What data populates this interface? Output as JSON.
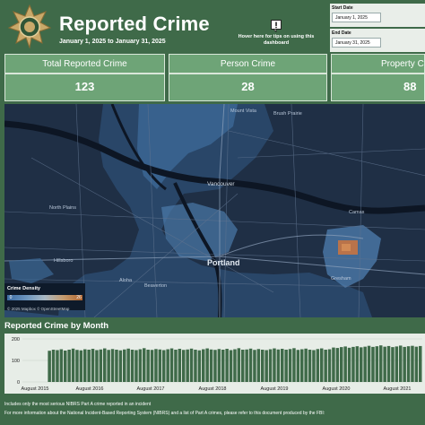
{
  "header": {
    "title": "Reported Crime",
    "date_range": "January 1, 2025 to January 31, 2025",
    "tips": "Hover here for tips on using this dashboard"
  },
  "filters": {
    "start_label": "Start Date",
    "start_value": "January 1, 2025",
    "end_label": "End Date",
    "end_value": "January 31, 2025"
  },
  "kpis": [
    {
      "label": "Total Reported Crime",
      "value": "123"
    },
    {
      "label": "Person Crime",
      "value": "28"
    },
    {
      "label": "Property Crime",
      "value": "88"
    }
  ],
  "map": {
    "cities": {
      "mount_vista": "Mount Vista",
      "brush_prairie": "Brush Prairie",
      "vancouver": "Vancouver",
      "north_plains": "North Plains",
      "camas": "Camas",
      "hillsboro": "Hillsboro",
      "portland": "Portland",
      "aloha": "Aloha",
      "beaverton": "Beaverton",
      "gresham": "Gresham"
    },
    "legend_title": "Crime Density",
    "legend_min": "0",
    "legend_max": "26",
    "copyright": "© 2025 Mapbox  © OpenStreetMap"
  },
  "chart_title": "Reported Crime by Month",
  "chart_data": {
    "type": "bar",
    "ylim": [
      0,
      200
    ],
    "y_ticks": [
      "200",
      "100",
      "0"
    ],
    "x_tick_labels": [
      "August 2015",
      "August 2016",
      "August 2017",
      "August 2018",
      "August 2019",
      "August 2020",
      "August 2021"
    ],
    "values": [
      145,
      150,
      148,
      152,
      146,
      150,
      155,
      149,
      147,
      152,
      150,
      154,
      148,
      151,
      156,
      149,
      153,
      150,
      147,
      151,
      155,
      150,
      148,
      152,
      157,
      150,
      149,
      153,
      151,
      148,
      152,
      156,
      150,
      154,
      149,
      151,
      155,
      150,
      147,
      152,
      156,
      151,
      149,
      153,
      150,
      154,
      148,
      152,
      157,
      150,
      151,
      155,
      149,
      153,
      150,
      148,
      152,
      156,
      151,
      154,
      150,
      153,
      157,
      149,
      152,
      155,
      150,
      148,
      153,
      156,
      150,
      152,
      160,
      158,
      162,
      165,
      159,
      163,
      166,
      161,
      164,
      168,
      163,
      166,
      170,
      164,
      167,
      162,
      165,
      169,
      163,
      166,
      168,
      164,
      167
    ]
  },
  "footer": {
    "line1": "Includes only the most serious NIBRS Part A crime reported in an incident",
    "line2": "For more information about the National Incident-Based Reporting System (NIBRS) and a list of Part A crimes, please refer to this document produced by the FBI:"
  },
  "colors": {
    "background": "#3f6a49",
    "kpi": "#6ea477",
    "bars": "#3f6a49",
    "map": "#1f2f45"
  }
}
